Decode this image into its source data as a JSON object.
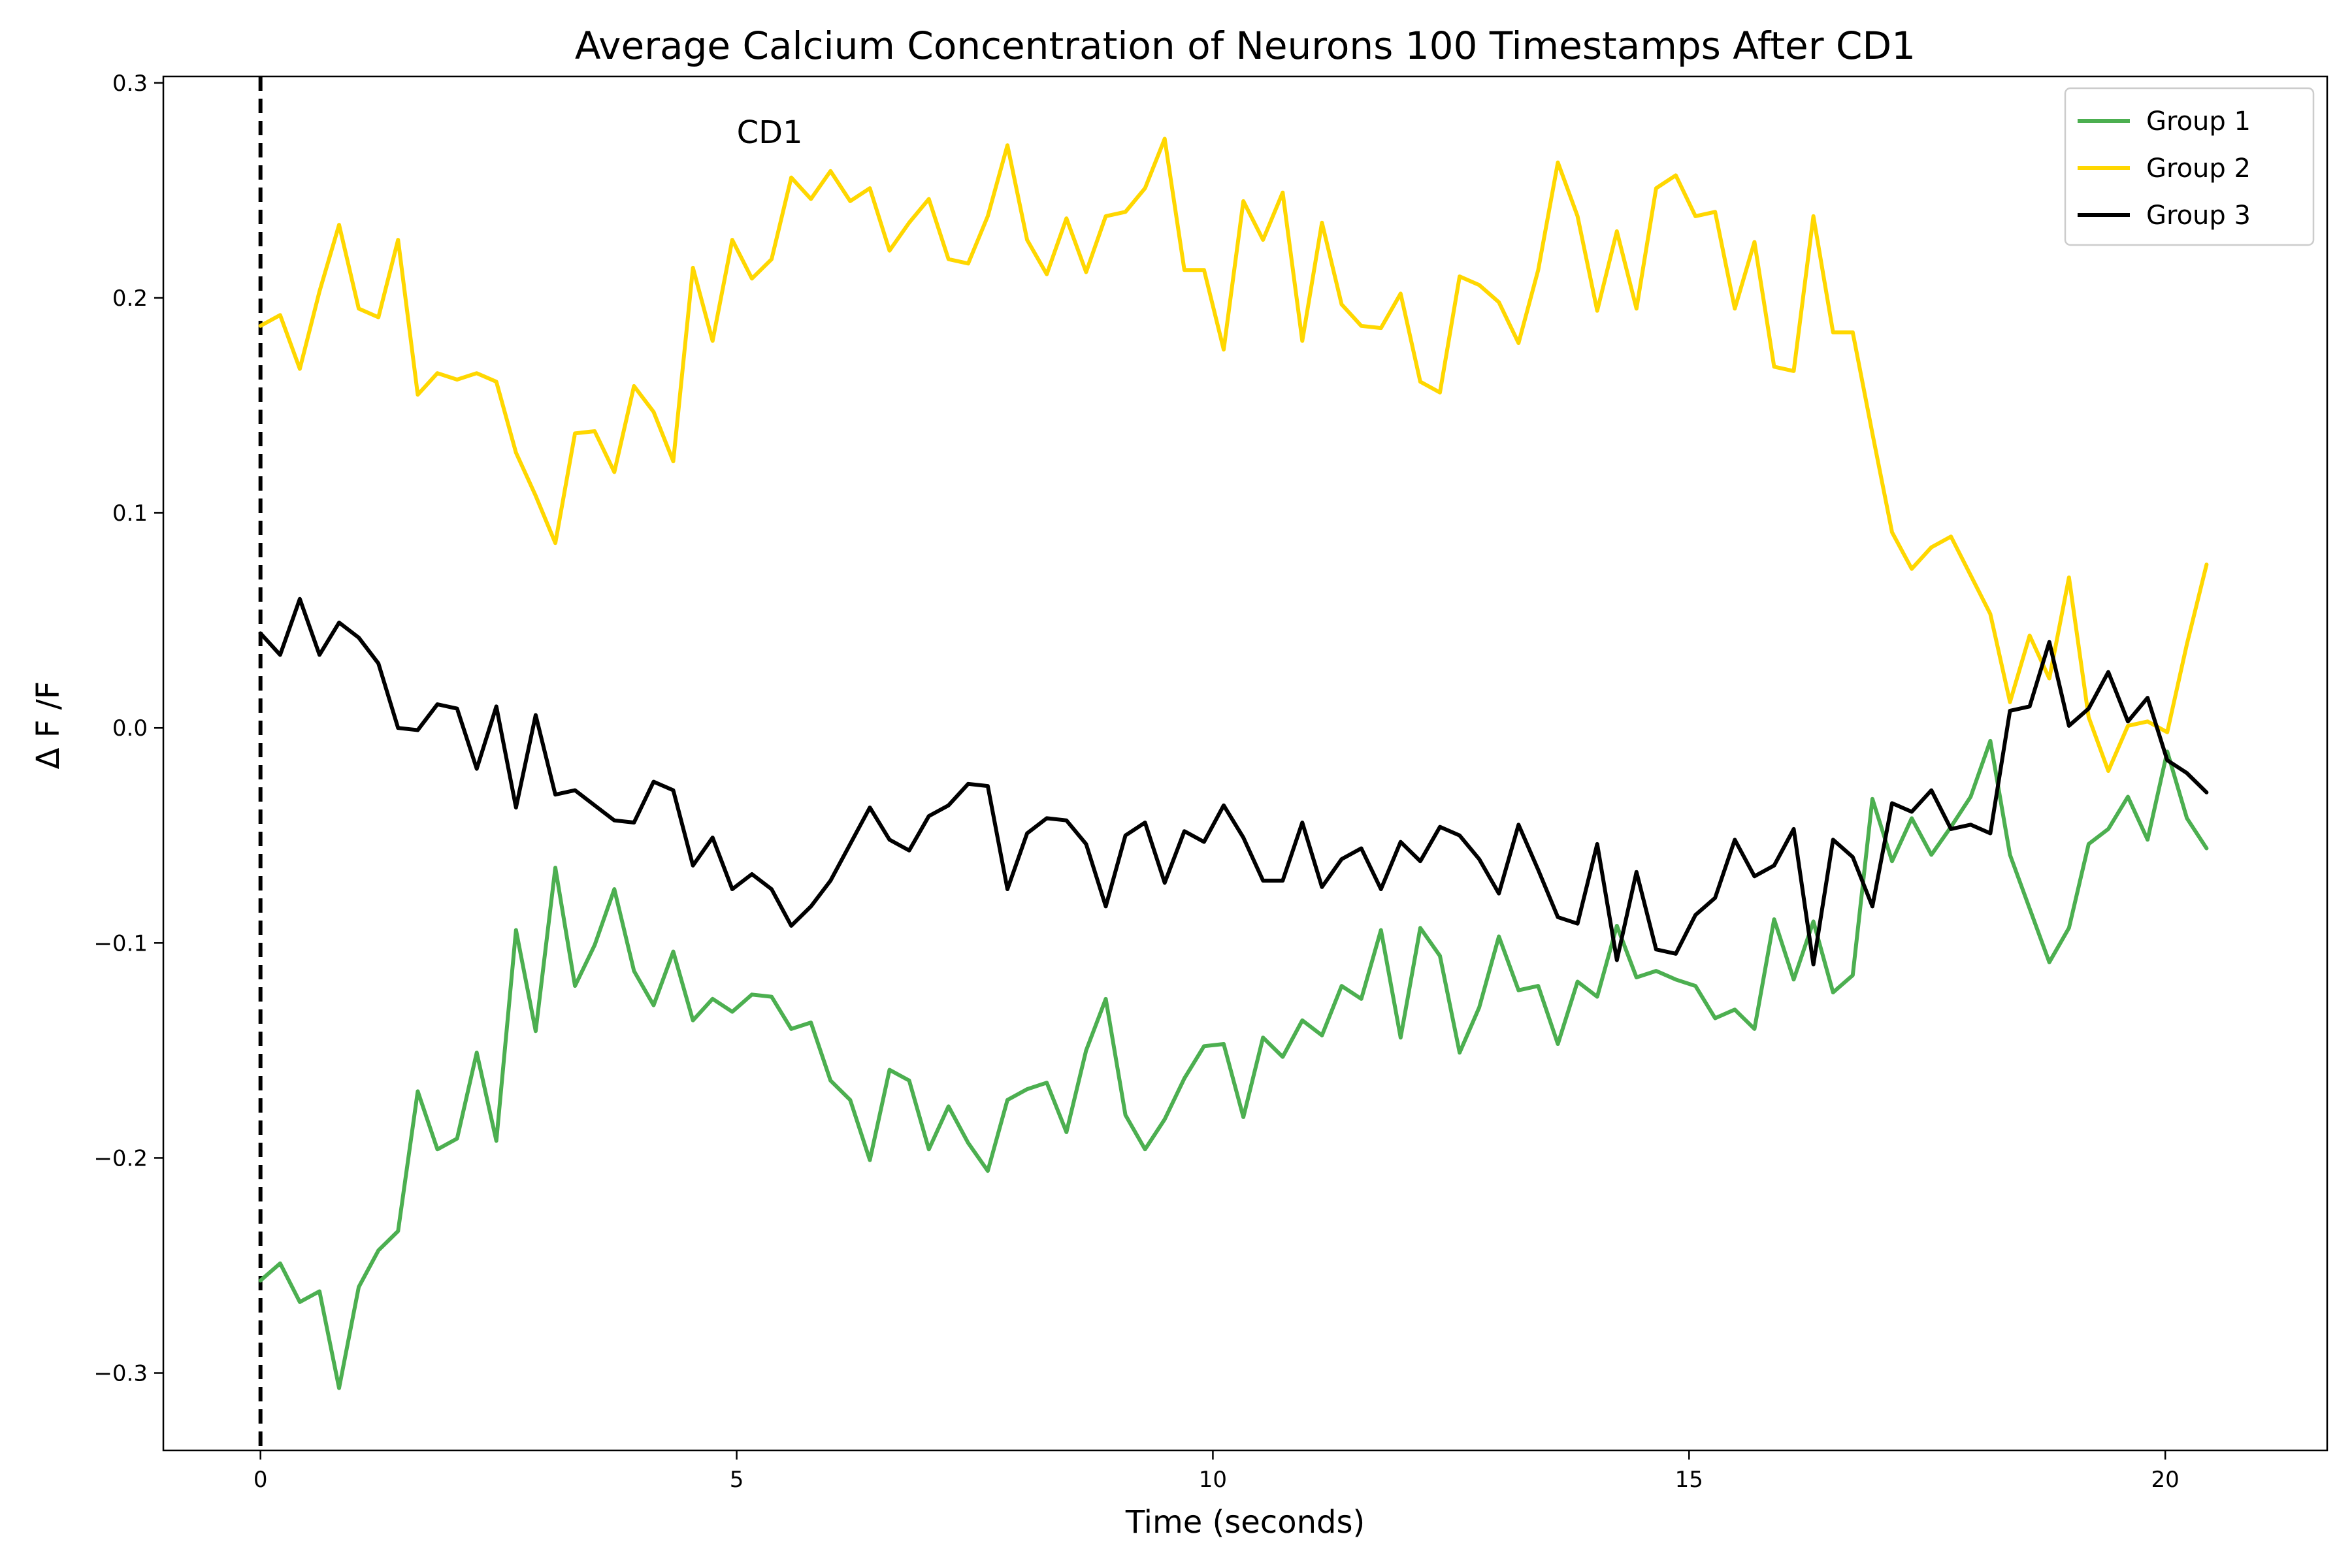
{
  "chart_data": {
    "type": "line",
    "title": "Average Calcium Concentration of Neurons 100 Timestamps After CD1",
    "xlabel": "Time (seconds)",
    "ylabel": "Δ F /F",
    "xlim": [
      -1.02,
      21.7
    ],
    "ylim": [
      -0.336,
      0.303
    ],
    "x_ticks": [
      0,
      5,
      10,
      15,
      20
    ],
    "x_tick_labels": [
      "0",
      "5",
      "10",
      "15",
      "20"
    ],
    "y_ticks": [
      -0.3,
      -0.2,
      -0.1,
      0.0,
      0.1,
      0.2,
      0.3
    ],
    "y_tick_labels": [
      "−0.3",
      "−0.2",
      "−0.1",
      "0.0",
      "0.1",
      "0.2",
      "0.3"
    ],
    "grid": false,
    "legend_position": "top-right",
    "annotation": {
      "text": "CD1",
      "x": 5.0,
      "y": 0.272
    },
    "vline": {
      "x": 0,
      "style": "dashed",
      "color": "#000000"
    },
    "x_start": 0,
    "x_step": 0.2064,
    "series": [
      {
        "name": "Group 1",
        "color": "#4caf50",
        "values": [
          -0.257,
          -0.249,
          -0.267,
          -0.262,
          -0.307,
          -0.26,
          -0.243,
          -0.234,
          -0.169,
          -0.196,
          -0.191,
          -0.151,
          -0.192,
          -0.094,
          -0.141,
          -0.065,
          -0.12,
          -0.101,
          -0.075,
          -0.113,
          -0.129,
          -0.104,
          -0.136,
          -0.126,
          -0.132,
          -0.124,
          -0.125,
          -0.14,
          -0.137,
          -0.164,
          -0.173,
          -0.201,
          -0.159,
          -0.164,
          -0.196,
          -0.176,
          -0.193,
          -0.206,
          -0.173,
          -0.168,
          -0.165,
          -0.188,
          -0.15,
          -0.126,
          -0.18,
          -0.196,
          -0.182,
          -0.163,
          -0.148,
          -0.147,
          -0.181,
          -0.144,
          -0.153,
          -0.136,
          -0.143,
          -0.12,
          -0.126,
          -0.094,
          -0.144,
          -0.093,
          -0.106,
          -0.151,
          -0.13,
          -0.097,
          -0.122,
          -0.12,
          -0.147,
          -0.118,
          -0.125,
          -0.092,
          -0.116,
          -0.113,
          -0.117,
          -0.12,
          -0.135,
          -0.131,
          -0.14,
          -0.089,
          -0.117,
          -0.09,
          -0.123,
          -0.115,
          -0.033,
          -0.062,
          -0.042,
          -0.059,
          -0.046,
          -0.032,
          -0.006,
          -0.059,
          -0.084,
          -0.109,
          -0.093,
          -0.054,
          -0.047,
          -0.032,
          -0.052,
          -0.011,
          -0.042,
          -0.056
        ]
      },
      {
        "name": "Group 2",
        "color": "#ffd700",
        "values": [
          0.187,
          0.192,
          0.167,
          0.203,
          0.234,
          0.195,
          0.191,
          0.227,
          0.155,
          0.165,
          0.162,
          0.165,
          0.161,
          0.128,
          0.108,
          0.086,
          0.137,
          0.138,
          0.119,
          0.159,
          0.147,
          0.124,
          0.214,
          0.18,
          0.227,
          0.209,
          0.218,
          0.256,
          0.246,
          0.259,
          0.245,
          0.251,
          0.222,
          0.235,
          0.246,
          0.218,
          0.216,
          0.238,
          0.271,
          0.227,
          0.211,
          0.237,
          0.212,
          0.238,
          0.24,
          0.251,
          0.274,
          0.213,
          0.213,
          0.176,
          0.245,
          0.227,
          0.249,
          0.18,
          0.235,
          0.197,
          0.187,
          0.186,
          0.202,
          0.161,
          0.156,
          0.21,
          0.206,
          0.198,
          0.179,
          0.213,
          0.263,
          0.238,
          0.194,
          0.231,
          0.195,
          0.251,
          0.257,
          0.238,
          0.24,
          0.195,
          0.226,
          0.168,
          0.166,
          0.238,
          0.184,
          0.184,
          0.137,
          0.091,
          0.074,
          0.084,
          0.089,
          0.071,
          0.053,
          0.012,
          0.043,
          0.023,
          0.07,
          0.005,
          -0.02,
          0.001,
          0.003,
          -0.002,
          0.039,
          0.076
        ]
      },
      {
        "name": "Group 3",
        "color": "#000000",
        "values": [
          0.044,
          0.034,
          0.06,
          0.034,
          0.049,
          0.042,
          0.03,
          0.0,
          -0.001,
          0.011,
          0.009,
          -0.019,
          0.01,
          -0.037,
          0.006,
          -0.031,
          -0.029,
          -0.036,
          -0.043,
          -0.044,
          -0.025,
          -0.029,
          -0.064,
          -0.051,
          -0.075,
          -0.068,
          -0.075,
          -0.092,
          -0.083,
          -0.071,
          -0.054,
          -0.037,
          -0.052,
          -0.057,
          -0.041,
          -0.036,
          -0.026,
          -0.027,
          -0.075,
          -0.049,
          -0.042,
          -0.043,
          -0.054,
          -0.083,
          -0.05,
          -0.044,
          -0.072,
          -0.048,
          -0.053,
          -0.036,
          -0.051,
          -0.071,
          -0.071,
          -0.044,
          -0.074,
          -0.061,
          -0.056,
          -0.075,
          -0.053,
          -0.062,
          -0.046,
          -0.05,
          -0.061,
          -0.077,
          -0.045,
          -0.066,
          -0.088,
          -0.091,
          -0.054,
          -0.108,
          -0.067,
          -0.103,
          -0.105,
          -0.087,
          -0.079,
          -0.052,
          -0.069,
          -0.064,
          -0.047,
          -0.11,
          -0.052,
          -0.06,
          -0.083,
          -0.035,
          -0.039,
          -0.029,
          -0.047,
          -0.045,
          -0.049,
          0.008,
          0.01,
          0.04,
          0.001,
          0.009,
          0.026,
          0.003,
          0.014,
          -0.015,
          -0.021,
          -0.03
        ]
      }
    ]
  }
}
